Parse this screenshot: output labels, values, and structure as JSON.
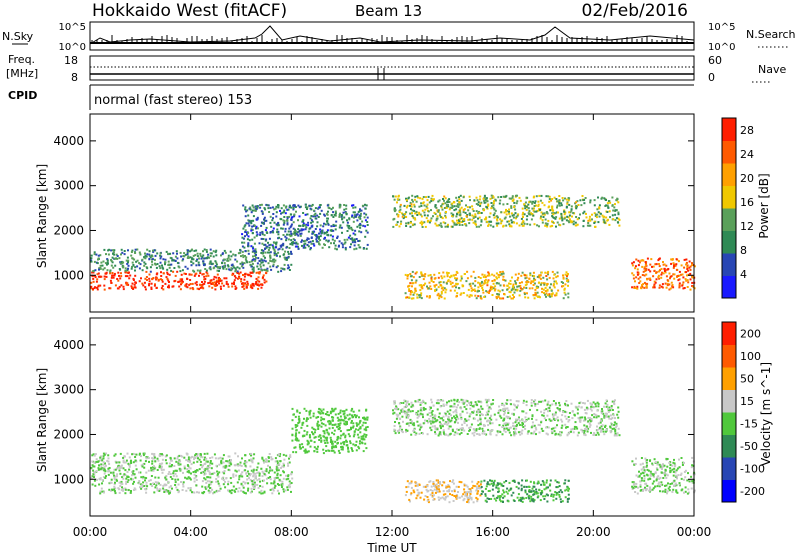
{
  "header": {
    "station": "Hokkaido West (fitACF)",
    "beam": "Beam 13",
    "date": "02/Feb/2016"
  },
  "summary_panels": {
    "nsky_label": "N.Sky",
    "nsky_tick_top": "10^5",
    "nsky_tick_bottom": "10^0",
    "nsearch_label": "N.Search",
    "freq_label_line1": "Freq.",
    "freq_label_line2": "[MHz]",
    "freq_tick_top": "18",
    "freq_tick_bottom": "8",
    "nave_tick_top": "60",
    "nave_tick_bottom": "0",
    "nave_label": "Nave",
    "cpid_label": "CPID",
    "cpid_text": "normal (fast stereo) 153"
  },
  "chart_data": [
    {
      "type": "heatmap",
      "title": "",
      "xlabel": "",
      "ylabel": "Slant Range [km]",
      "x_tick_labels": [
        "00:00",
        "04:00",
        "08:00",
        "12:00",
        "16:00",
        "20:00",
        "00:00"
      ],
      "xlim_hours": [
        0,
        24
      ],
      "y_ticks": [
        1000,
        2000,
        3000,
        4000
      ],
      "ylim": [
        180,
        4600
      ],
      "colorbar_label": "Power [dB]",
      "colorbar_ticks": [
        "4",
        "8",
        "12",
        "16",
        "20",
        "24",
        "28"
      ],
      "colorbar_range": [
        0,
        30
      ],
      "colors": [
        "#1a1aff",
        "#2846b4",
        "#2f8a55",
        "#5aa05a",
        "#f0c800",
        "#ffa000",
        "#ff5a00",
        "#ff1e00"
      ],
      "echo_bands_hours_km": [
        {
          "t": [
            0,
            7
          ],
          "r": [
            700,
            1100
          ],
          "level": 28
        },
        {
          "t": [
            0,
            8
          ],
          "r": [
            1100,
            1600
          ],
          "level": 10
        },
        {
          "t": [
            6,
            11
          ],
          "r": [
            1600,
            2600
          ],
          "level": 8
        },
        {
          "t": [
            12,
            21
          ],
          "r": [
            2100,
            2800
          ],
          "level": 14
        },
        {
          "t": [
            12.5,
            19
          ],
          "r": [
            500,
            1100
          ],
          "level": 18
        },
        {
          "t": [
            21.5,
            24
          ],
          "r": [
            700,
            1400
          ],
          "level": 24
        }
      ]
    },
    {
      "type": "heatmap",
      "title": "",
      "xlabel": "Time UT",
      "ylabel": "Slant Range [km]",
      "x_tick_labels": [
        "00:00",
        "04:00",
        "08:00",
        "12:00",
        "16:00",
        "20:00",
        "00:00"
      ],
      "xlim_hours": [
        0,
        24
      ],
      "y_ticks": [
        1000,
        2000,
        3000,
        4000
      ],
      "ylim": [
        180,
        4600
      ],
      "colorbar_label": "Velocity [m s^-1]",
      "colorbar_ticks": [
        "200",
        "100",
        "50",
        "15",
        "-15",
        "-50",
        "-100",
        "-200"
      ],
      "colorbar_range": [
        -250,
        250
      ],
      "colors": [
        "#0000ff",
        "#2846b4",
        "#2f8a55",
        "#50c83c",
        "#c8c8c8",
        "#ffa000",
        "#ff5a00",
        "#ff1e00"
      ],
      "echo_bands_hours_km": [
        {
          "t": [
            0,
            8
          ],
          "r": [
            700,
            1600
          ],
          "level": 0
        },
        {
          "t": [
            8,
            11
          ],
          "r": [
            1600,
            2600
          ],
          "level": -20
        },
        {
          "t": [
            12,
            21
          ],
          "r": [
            2000,
            2800
          ],
          "level": 0
        },
        {
          "t": [
            12.5,
            15.5
          ],
          "r": [
            500,
            1000
          ],
          "level": 60
        },
        {
          "t": [
            15.5,
            19
          ],
          "r": [
            500,
            1000
          ],
          "level": -60
        },
        {
          "t": [
            21.5,
            24
          ],
          "r": [
            700,
            1500
          ],
          "level": 0
        }
      ]
    }
  ]
}
